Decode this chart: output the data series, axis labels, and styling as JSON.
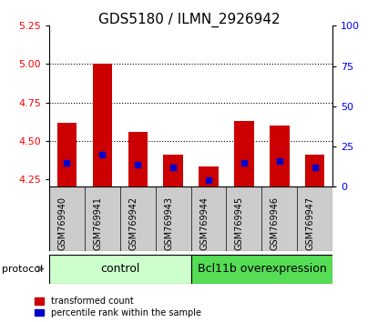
{
  "title": "GDS5180 / ILMN_2926942",
  "samples": [
    "GSM769940",
    "GSM769941",
    "GSM769942",
    "GSM769943",
    "GSM769944",
    "GSM769945",
    "GSM769946",
    "GSM769947"
  ],
  "transformed_count": [
    4.62,
    5.0,
    4.56,
    4.41,
    4.33,
    4.63,
    4.6,
    4.41
  ],
  "percentile_rank_pct": [
    15,
    20,
    14,
    12,
    4,
    15,
    16,
    12
  ],
  "ylim_left": [
    4.2,
    5.25
  ],
  "yticks_left": [
    4.25,
    4.5,
    4.75,
    5.0,
    5.25
  ],
  "ylim_right": [
    0,
    100
  ],
  "yticks_right": [
    0,
    25,
    50,
    75,
    100
  ],
  "bar_color": "#cc0000",
  "blue_color": "#0000cc",
  "bar_width": 0.55,
  "n_control": 4,
  "n_overexp": 4,
  "control_label": "control",
  "overexp_label": "Bcl11b overexpression",
  "protocol_label": "protocol",
  "legend_red_label": "transformed count",
  "legend_blue_label": "percentile rank within the sample",
  "control_bg": "#ccffcc",
  "overexp_bg": "#55dd55",
  "xlabels_bg": "#cccccc",
  "title_fontsize": 11,
  "tick_fontsize": 8,
  "label_fontsize": 7,
  "proto_fontsize": 9
}
